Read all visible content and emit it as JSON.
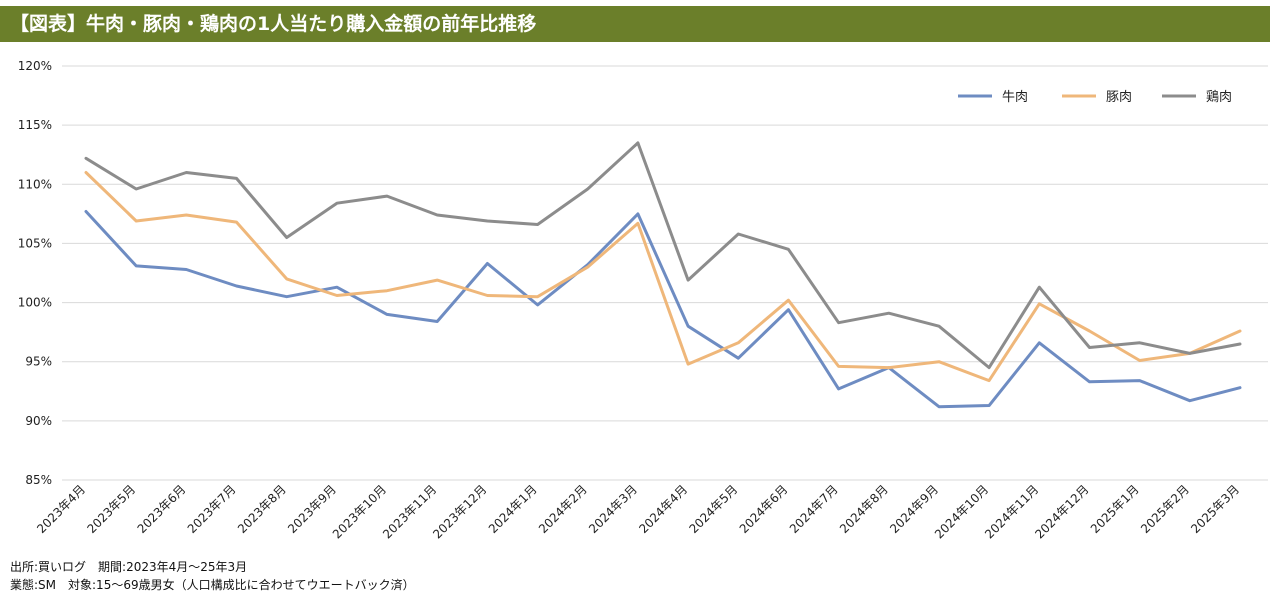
{
  "title": "【図表】牛肉・豚肉・鶏肉の1人当たり購入金額の前年比推移",
  "footer": {
    "line1": "出所:買いログ　期間:2023年4月～25年3月",
    "line2": "業態:SM　対象:15～69歳男女（人口構成比に合わせてウエートバック済）"
  },
  "colors": {
    "header": "#6b7f2a",
    "beef": "#6e8cc2",
    "pork": "#efb77a",
    "chicken": "#8c8c8c",
    "grid": "#d9d9d9"
  },
  "chart_data": {
    "type": "line",
    "ylim": [
      85,
      120
    ],
    "yticks": [
      "85%",
      "90%",
      "95%",
      "100%",
      "105%",
      "110%",
      "115%",
      "120%"
    ],
    "grid": true,
    "legend_position": "top-right",
    "categories": [
      "2023年4月",
      "2023年5月",
      "2023年6月",
      "2023年7月",
      "2023年8月",
      "2023年9月",
      "2023年10月",
      "2023年11月",
      "2023年12月",
      "2024年1月",
      "2024年2月",
      "2024年3月",
      "2024年4月",
      "2024年5月",
      "2024年6月",
      "2024年7月",
      "2024年8月",
      "2024年9月",
      "2024年10月",
      "2024年11月",
      "2024年12月",
      "2025年1月",
      "2025年2月",
      "2025年3月"
    ],
    "series": [
      {
        "name": "牛肉",
        "color": "#6e8cc2",
        "values": [
          107.7,
          103.1,
          102.8,
          101.4,
          100.5,
          101.3,
          99.0,
          98.4,
          103.3,
          99.8,
          103.2,
          107.5,
          98.0,
          95.3,
          99.4,
          92.7,
          94.5,
          91.2,
          91.3,
          96.6,
          93.3,
          93.4,
          91.7,
          92.8
        ]
      },
      {
        "name": "豚肉",
        "color": "#efb77a",
        "values": [
          111.0,
          106.9,
          107.4,
          106.8,
          102.0,
          100.6,
          101.0,
          101.9,
          100.6,
          100.5,
          103.0,
          106.7,
          94.8,
          96.6,
          100.2,
          94.6,
          94.5,
          95.0,
          93.4,
          99.9,
          97.6,
          95.1,
          95.7,
          97.6
        ]
      },
      {
        "name": "鶏肉",
        "color": "#8c8c8c",
        "values": [
          112.2,
          109.6,
          111.0,
          110.5,
          105.5,
          108.4,
          109.0,
          107.4,
          106.9,
          106.6,
          109.6,
          113.5,
          101.9,
          105.8,
          104.5,
          98.3,
          99.1,
          98.0,
          94.5,
          101.3,
          96.2,
          96.6,
          95.7,
          96.5
        ]
      }
    ]
  }
}
